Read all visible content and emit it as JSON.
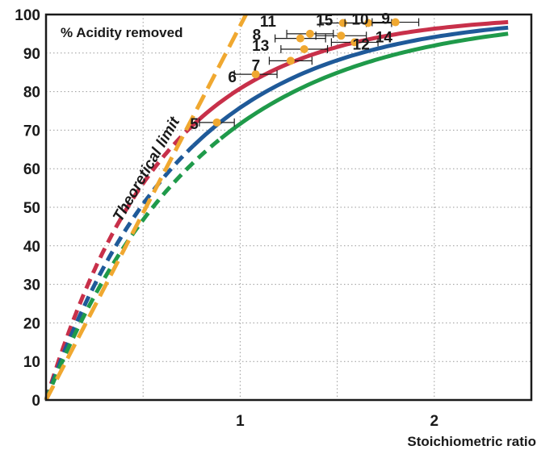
{
  "chart_data": {
    "type": "line",
    "title": "% Acidity removed",
    "xlabel": "Stoichiometric ratio",
    "ylabel": "",
    "xlim": [
      0,
      2.5
    ],
    "ylim": [
      0,
      100
    ],
    "x_ticks": [
      {
        "value": 1,
        "label": "1"
      },
      {
        "value": 2,
        "label": "2"
      }
    ],
    "y_ticks": [
      0,
      10,
      20,
      30,
      40,
      50,
      60,
      70,
      80,
      90,
      100
    ],
    "grid": true,
    "theoretical_limit": {
      "label": "Theoretical limit",
      "color": "#f0a830",
      "x": [
        0,
        1.03
      ],
      "y": [
        0,
        100
      ]
    },
    "series": [
      {
        "color": "#c8304a",
        "k": 1.65,
        "dashed_until_x": 0.72,
        "x_end": 2.38
      },
      {
        "color": "#1f5a99",
        "k": 1.42,
        "dashed_until_x": 0.76,
        "x_end": 2.38
      },
      {
        "color": "#1f9a4a",
        "k": 1.26,
        "dashed_until_x": 0.9,
        "x_end": 2.38
      }
    ],
    "points": [
      {
        "label": "5",
        "x": 0.88,
        "y": 72.0,
        "xerr": 0.09
      },
      {
        "label": "6",
        "x": 1.08,
        "y": 84.5,
        "xerr": 0.11
      },
      {
        "label": "7",
        "x": 1.26,
        "y": 88.0,
        "xerr": 0.11
      },
      {
        "label": "13",
        "x": 1.33,
        "y": 91.0,
        "xerr": 0.12
      },
      {
        "label": "8",
        "x": 1.31,
        "y": 93.8,
        "xerr": 0.13
      },
      {
        "label": "11",
        "x": 1.36,
        "y": 95.0,
        "xerr": 0.12
      },
      {
        "label": "12",
        "x": 1.59,
        "y": 92.8,
        "xerr": 0.12
      },
      {
        "label": "14",
        "x": 1.52,
        "y": 94.5,
        "xerr": 0.13
      },
      {
        "label": "15",
        "x": 1.53,
        "y": 97.8,
        "xerr": 0.12
      },
      {
        "label": "10",
        "x": 1.66,
        "y": 97.8,
        "xerr": 0.12
      },
      {
        "label": "9",
        "x": 1.8,
        "y": 98.0,
        "xerr": 0.12
      }
    ],
    "point_color": "#f0a830"
  }
}
